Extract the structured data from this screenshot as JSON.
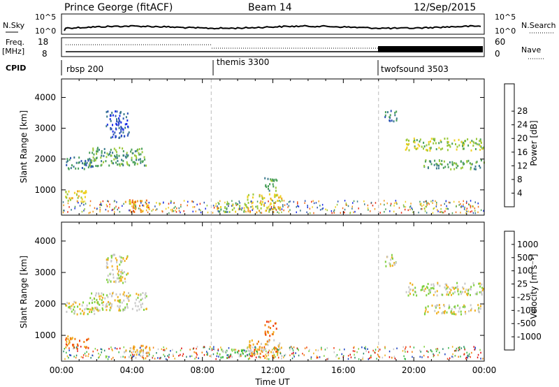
{
  "header": {
    "station": "Prince George (fitACF)",
    "beam": "Beam 14",
    "date": "12/Sep/2015"
  },
  "status_panel": {
    "nsky_label": "N.Sky",
    "nsearch_label": "N.Search",
    "top_ticks": [
      "10^5",
      "10^0"
    ],
    "right_top_ticks": [
      "10^5",
      "10^0"
    ],
    "freq_label": "Freq.",
    "freq_unit": "[MHz]",
    "freq_ticks": [
      "18",
      "8"
    ],
    "nave_label": "Nave",
    "nave_ticks": [
      "60",
      "0"
    ],
    "cpid_label": "CPID"
  },
  "cpid_segments": [
    {
      "label": "rbsp 200",
      "start_hour": 0
    },
    {
      "label": "themis 3300",
      "start_hour": 8.5
    },
    {
      "label": "twofsound 3503",
      "start_hour": 18
    }
  ],
  "chart_data": [
    {
      "type": "heatmap",
      "panel": "power",
      "ylabel": "Slant Range [km]",
      "xlim": [
        0,
        24
      ],
      "ylim": [
        180,
        4600
      ],
      "yticks": [
        1000,
        2000,
        3000,
        4000
      ],
      "colorbar": {
        "label": "Power [dB]",
        "ticks": [
          "4",
          "8",
          "12",
          "16",
          "20",
          "24",
          "28"
        ],
        "colors": [
          "#1a2ee6",
          "#2d55b5",
          "#3a7a8c",
          "#4aa05a",
          "#9ac83a",
          "#f0d020",
          "#f0a020",
          "#f07020",
          "#e83018"
        ]
      },
      "regions": [
        {
          "x": [
            0.2,
            2.0
          ],
          "y": [
            1700,
            2100
          ],
          "level": 2
        },
        {
          "x": [
            1.5,
            4.8
          ],
          "y": [
            1800,
            2400
          ],
          "level": 3
        },
        {
          "x": [
            0.2,
            1.5
          ],
          "y": [
            600,
            1000
          ],
          "level": 5
        },
        {
          "x": [
            2.5,
            3.8
          ],
          "y": [
            2700,
            3600
          ],
          "level": 1
        },
        {
          "x": [
            3.5,
            5.0
          ],
          "y": [
            300,
            700
          ],
          "level": 6
        },
        {
          "x": [
            8.8,
            10.5
          ],
          "y": [
            300,
            600
          ],
          "level": 4
        },
        {
          "x": [
            10.5,
            12.5
          ],
          "y": [
            300,
            900
          ],
          "level": 5
        },
        {
          "x": [
            11.5,
            12.2
          ],
          "y": [
            1000,
            1500
          ],
          "level": 3
        },
        {
          "x": [
            19.5,
            24.0
          ],
          "y": [
            2300,
            2700
          ],
          "level": 4
        },
        {
          "x": [
            20.5,
            24.0
          ],
          "y": [
            1700,
            2000
          ],
          "level": 3
        },
        {
          "x": [
            18.3,
            19.0
          ],
          "y": [
            3200,
            3600
          ],
          "level": 2
        }
      ]
    },
    {
      "type": "heatmap",
      "panel": "velocity",
      "ylabel": "Slant Range [km]",
      "xlabel": "Time UT",
      "xlim": [
        0,
        24
      ],
      "ylim": [
        180,
        4600
      ],
      "xticks": [
        "00:00",
        "04:00",
        "08:00",
        "12:00",
        "16:00",
        "20:00",
        "00:00"
      ],
      "yticks": [
        1000,
        2000,
        3000,
        4000
      ],
      "colorbar": {
        "label": "Velocity [m s⁻¹]",
        "ticks": [
          "1000",
          "500",
          "100",
          "25",
          "-25",
          "-100",
          "-500",
          "-1000"
        ],
        "colors": [
          "#1a40c0",
          "#2a8a6a",
          "#3ab84a",
          "#80d040",
          "#c8c8c8",
          "#f0b020",
          "#f08010",
          "#f04010",
          "#e01010"
        ]
      },
      "regions": [
        {
          "x": [
            0.2,
            2.0
          ],
          "y": [
            1700,
            2100
          ],
          "level": 4
        },
        {
          "x": [
            1.5,
            4.8
          ],
          "y": [
            1800,
            2400
          ],
          "level": 4
        },
        {
          "x": [
            0.2,
            1.5
          ],
          "y": [
            600,
            1000
          ],
          "level": 6
        },
        {
          "x": [
            2.5,
            3.8
          ],
          "y": [
            2700,
            3600
          ],
          "level": 4
        },
        {
          "x": [
            3.5,
            5.0
          ],
          "y": [
            300,
            700
          ],
          "level": 5
        },
        {
          "x": [
            8.8,
            10.5
          ],
          "y": [
            300,
            600
          ],
          "level": 3
        },
        {
          "x": [
            10.5,
            12.5
          ],
          "y": [
            300,
            900
          ],
          "level": 5
        },
        {
          "x": [
            11.5,
            12.2
          ],
          "y": [
            1000,
            1500
          ],
          "level": 6
        },
        {
          "x": [
            19.5,
            24.0
          ],
          "y": [
            2300,
            2700
          ],
          "level": 4
        },
        {
          "x": [
            20.5,
            24.0
          ],
          "y": [
            1700,
            2000
          ],
          "level": 4
        },
        {
          "x": [
            18.3,
            19.0
          ],
          "y": [
            3200,
            3600
          ],
          "level": 4
        }
      ]
    }
  ]
}
